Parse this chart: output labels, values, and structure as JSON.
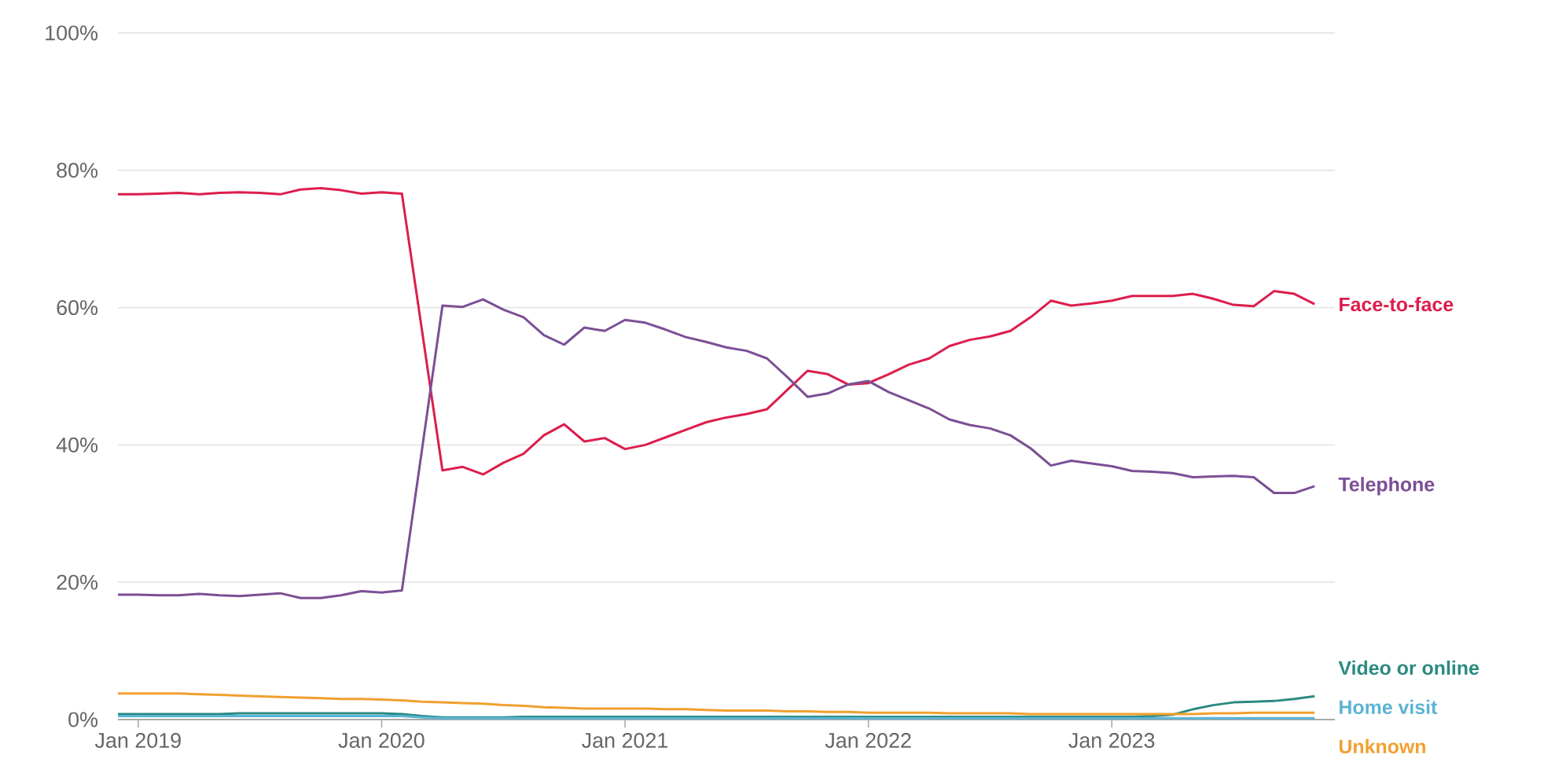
{
  "chart_data": {
    "type": "line",
    "x": [
      "2018-12",
      "2019-01",
      "2019-02",
      "2019-03",
      "2019-04",
      "2019-05",
      "2019-06",
      "2019-07",
      "2019-08",
      "2019-09",
      "2019-10",
      "2019-11",
      "2019-12",
      "2020-01",
      "2020-02",
      "2020-03",
      "2020-04",
      "2020-05",
      "2020-06",
      "2020-07",
      "2020-08",
      "2020-09",
      "2020-10",
      "2020-11",
      "2020-12",
      "2021-01",
      "2021-02",
      "2021-03",
      "2021-04",
      "2021-05",
      "2021-06",
      "2021-07",
      "2021-08",
      "2021-09",
      "2021-10",
      "2021-11",
      "2021-12",
      "2022-01",
      "2022-02",
      "2022-03",
      "2022-04",
      "2022-05",
      "2022-06",
      "2022-07",
      "2022-08",
      "2022-09",
      "2022-10",
      "2022-11",
      "2022-12",
      "2023-01",
      "2023-02",
      "2023-03",
      "2023-04",
      "2023-05",
      "2023-06",
      "2023-07",
      "2023-08",
      "2023-09",
      "2023-10",
      "2023-11"
    ],
    "series": [
      {
        "name": "Face-to-face",
        "color": "#dc1e4c",
        "values": [
          76.5,
          76.5,
          76.6,
          76.7,
          76.5,
          76.7,
          76.8,
          76.7,
          76.5,
          77.2,
          77.4,
          77.1,
          76.6,
          76.8,
          76.6,
          56.5,
          36.3,
          36.8,
          35.7,
          37.4,
          38.7,
          41.4,
          43.0,
          40.5,
          41.0,
          39.4,
          40.0,
          41.1,
          42.2,
          43.3,
          44.0,
          44.5,
          45.2,
          48.0,
          50.8,
          50.3,
          48.8,
          49.0,
          50.3,
          51.7,
          52.6,
          54.4,
          55.3,
          55.8,
          56.6,
          58.6,
          61.0,
          60.3,
          60.6,
          61.0,
          61.7,
          61.7,
          61.7,
          62.0,
          61.3,
          60.4,
          60.2,
          62.4,
          62.0,
          60.5
        ]
      },
      {
        "name": "Telephone",
        "color": "#7b4f95",
        "values": [
          18.2,
          18.2,
          18.1,
          18.1,
          18.3,
          18.1,
          18.0,
          18.2,
          18.4,
          17.7,
          17.7,
          18.1,
          18.7,
          18.5,
          18.8,
          39.5,
          60.3,
          60.1,
          61.2,
          59.7,
          58.6,
          56.0,
          54.6,
          57.1,
          56.6,
          58.2,
          57.8,
          56.8,
          55.7,
          55.0,
          54.2,
          53.7,
          52.6,
          49.9,
          47.0,
          47.5,
          48.8,
          49.3,
          47.7,
          46.5,
          45.3,
          43.7,
          42.9,
          42.4,
          41.4,
          39.5,
          37.0,
          37.7,
          37.3,
          36.9,
          36.2,
          36.1,
          35.9,
          35.3,
          35.4,
          35.5,
          35.3,
          33.0,
          33.0,
          34.0
        ]
      },
      {
        "name": "Video or online",
        "color": "#2a8a80",
        "values": [
          0.8,
          0.8,
          0.8,
          0.8,
          0.8,
          0.8,
          0.9,
          0.9,
          0.9,
          0.9,
          0.9,
          0.9,
          0.9,
          0.9,
          0.8,
          0.5,
          0.3,
          0.3,
          0.3,
          0.3,
          0.4,
          0.4,
          0.4,
          0.4,
          0.4,
          0.4,
          0.4,
          0.4,
          0.4,
          0.4,
          0.4,
          0.4,
          0.4,
          0.4,
          0.4,
          0.4,
          0.4,
          0.4,
          0.4,
          0.4,
          0.4,
          0.4,
          0.4,
          0.4,
          0.4,
          0.4,
          0.4,
          0.4,
          0.4,
          0.4,
          0.4,
          0.5,
          0.7,
          1.5,
          2.1,
          2.5,
          2.6,
          2.7,
          3.0,
          3.4
        ]
      },
      {
        "name": "Home visit",
        "color": "#5ab4d4",
        "values": [
          0.5,
          0.5,
          0.5,
          0.5,
          0.5,
          0.5,
          0.5,
          0.5,
          0.5,
          0.5,
          0.5,
          0.5,
          0.5,
          0.5,
          0.5,
          0.3,
          0.2,
          0.2,
          0.2,
          0.2,
          0.2,
          0.2,
          0.2,
          0.2,
          0.2,
          0.2,
          0.2,
          0.2,
          0.2,
          0.2,
          0.2,
          0.2,
          0.2,
          0.2,
          0.2,
          0.2,
          0.2,
          0.2,
          0.2,
          0.2,
          0.2,
          0.2,
          0.2,
          0.2,
          0.2,
          0.2,
          0.2,
          0.2,
          0.2,
          0.2,
          0.2,
          0.2,
          0.2,
          0.2,
          0.2,
          0.2,
          0.2,
          0.2,
          0.2,
          0.2
        ]
      },
      {
        "name": "Unknown",
        "color": "#f0a030",
        "values": [
          3.8,
          3.8,
          3.8,
          3.8,
          3.7,
          3.6,
          3.5,
          3.4,
          3.3,
          3.2,
          3.1,
          3.0,
          3.0,
          2.9,
          2.8,
          2.6,
          2.5,
          2.4,
          2.3,
          2.1,
          2.0,
          1.8,
          1.7,
          1.6,
          1.6,
          1.6,
          1.6,
          1.5,
          1.5,
          1.4,
          1.3,
          1.3,
          1.3,
          1.2,
          1.2,
          1.1,
          1.1,
          1.0,
          1.0,
          1.0,
          1.0,
          0.9,
          0.9,
          0.9,
          0.9,
          0.8,
          0.8,
          0.8,
          0.8,
          0.8,
          0.8,
          0.8,
          0.8,
          0.8,
          0.9,
          0.9,
          1.0,
          1.0,
          1.0,
          1.0
        ]
      }
    ],
    "xlim": [
      "2018-12",
      "2023-12"
    ],
    "xticks": [
      {
        "value": "2019-01",
        "label": "Jan 2019"
      },
      {
        "value": "2020-01",
        "label": "Jan 2020"
      },
      {
        "value": "2021-01",
        "label": "Jan 2021"
      },
      {
        "value": "2022-01",
        "label": "Jan 2022"
      },
      {
        "value": "2023-01",
        "label": "Jan 2023"
      }
    ],
    "ylim": [
      0,
      100
    ],
    "yticks": [
      {
        "value": 0,
        "label": "0%"
      },
      {
        "value": 20,
        "label": "20%"
      },
      {
        "value": 40,
        "label": "40%"
      },
      {
        "value": 60,
        "label": "60%"
      },
      {
        "value": 80,
        "label": "80%"
      },
      {
        "value": 100,
        "label": "100%"
      }
    ],
    "grid": "y"
  }
}
